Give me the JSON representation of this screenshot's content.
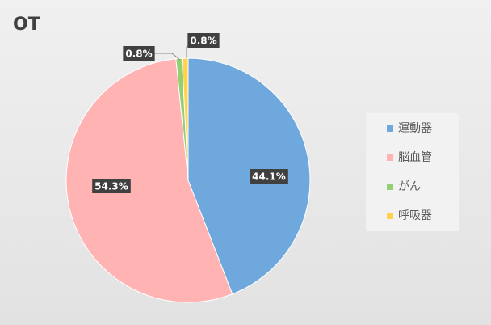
{
  "chart_data": {
    "type": "pie",
    "title": "OT",
    "categories": [
      "運動器",
      "脳血管",
      "がん",
      "呼吸器"
    ],
    "values": [
      44.1,
      54.3,
      0.8,
      0.8
    ],
    "value_labels": [
      "44.1%",
      "54.3%",
      "0.8%",
      "0.8%"
    ],
    "colors": [
      "#6fa8dc",
      "#ffb3b3",
      "#93cf73",
      "#ffd34d"
    ],
    "legend": "right"
  }
}
